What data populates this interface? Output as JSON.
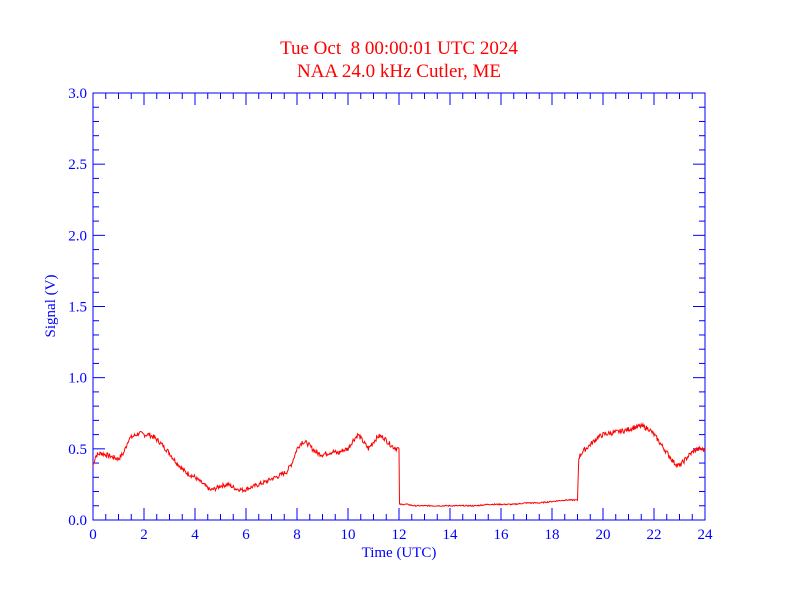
{
  "chart_data": {
    "type": "line",
    "title": "Tue Oct  8 00:00:01 UTC 2024",
    "subtitle": "NAA 24.0 kHz Cutler, ME",
    "xlabel": "Time (UTC)",
    "ylabel": "Signal (V)",
    "xlim": [
      0,
      24
    ],
    "ylim": [
      0,
      3.0
    ],
    "x_ticks": [
      "0",
      "2",
      "4",
      "6",
      "8",
      "10",
      "12",
      "14",
      "16",
      "18",
      "20",
      "22",
      "24"
    ],
    "y_ticks": [
      "0.0",
      "0.5",
      "1.0",
      "1.5",
      "2.0",
      "2.5",
      "3.0"
    ],
    "grid": false,
    "series": [
      {
        "color": "#ff0000",
        "x": [
          0.0,
          0.1,
          0.3,
          0.5,
          0.8,
          1.0,
          1.2,
          1.4,
          1.6,
          1.8,
          2.0,
          2.2,
          2.4,
          2.6,
          2.8,
          3.0,
          3.2,
          3.4,
          3.6,
          3.8,
          4.0,
          4.2,
          4.4,
          4.6,
          4.8,
          5.0,
          5.3,
          5.6,
          5.9,
          6.2,
          6.5,
          6.8,
          7.0,
          7.3,
          7.6,
          7.8,
          8.0,
          8.2,
          8.4,
          8.6,
          8.8,
          9.0,
          9.2,
          9.4,
          9.6,
          9.8,
          10.0,
          10.2,
          10.4,
          10.6,
          10.8,
          11.0,
          11.2,
          11.4,
          11.6,
          11.8,
          12.0,
          12.02,
          12.3,
          12.6,
          13.0,
          13.5,
          14.0,
          14.5,
          15.0,
          15.5,
          16.0,
          16.5,
          17.0,
          17.5,
          18.0,
          18.5,
          19.0,
          19.05,
          19.2,
          19.5,
          19.8,
          20.0,
          20.3,
          20.6,
          20.9,
          21.2,
          21.5,
          21.8,
          22.0,
          22.2,
          22.4,
          22.6,
          22.8,
          23.0,
          23.2,
          23.4,
          23.6,
          23.8,
          24.0
        ],
        "values": [
          0.38,
          0.45,
          0.47,
          0.46,
          0.44,
          0.43,
          0.47,
          0.57,
          0.59,
          0.61,
          0.6,
          0.6,
          0.58,
          0.55,
          0.51,
          0.47,
          0.42,
          0.38,
          0.34,
          0.32,
          0.3,
          0.27,
          0.24,
          0.21,
          0.22,
          0.24,
          0.25,
          0.22,
          0.21,
          0.23,
          0.25,
          0.27,
          0.29,
          0.31,
          0.34,
          0.4,
          0.5,
          0.55,
          0.54,
          0.5,
          0.47,
          0.46,
          0.47,
          0.48,
          0.47,
          0.49,
          0.5,
          0.56,
          0.6,
          0.55,
          0.5,
          0.55,
          0.59,
          0.58,
          0.54,
          0.51,
          0.5,
          0.11,
          0.11,
          0.1,
          0.1,
          0.1,
          0.1,
          0.1,
          0.1,
          0.11,
          0.11,
          0.11,
          0.12,
          0.12,
          0.13,
          0.14,
          0.14,
          0.44,
          0.48,
          0.53,
          0.58,
          0.6,
          0.61,
          0.62,
          0.63,
          0.65,
          0.66,
          0.64,
          0.6,
          0.55,
          0.5,
          0.45,
          0.4,
          0.38,
          0.42,
          0.46,
          0.49,
          0.5,
          0.49
        ]
      }
    ]
  }
}
